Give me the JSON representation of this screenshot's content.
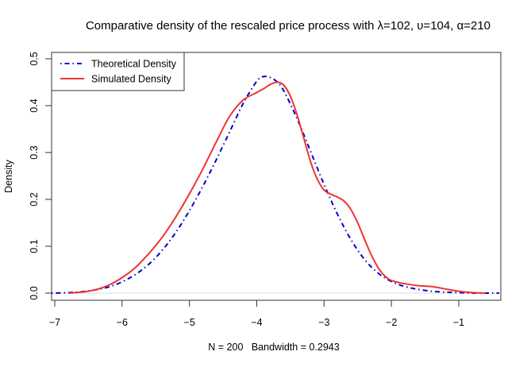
{
  "chart_data": {
    "type": "line",
    "title": "Comparative density of the rescaled price process with λ=102, υ=104, α=210",
    "xlabel": "N = 200   Bandwidth = 0.2943",
    "ylabel": "Density",
    "xlim": [
      -7.05,
      -0.4
    ],
    "ylim": [
      -0.015,
      0.525
    ],
    "x_ticks": [
      -7,
      -6,
      -5,
      -4,
      -3,
      -2,
      -1
    ],
    "x_tick_labels": [
      "−7",
      "−6",
      "−5",
      "−4",
      "−3",
      "−2",
      "−1"
    ],
    "y_ticks": [
      0.0,
      0.1,
      0.2,
      0.3,
      0.4,
      0.5
    ],
    "y_tick_labels": [
      "0.0",
      "0.1",
      "0.2",
      "0.3",
      "0.4",
      "0.5"
    ],
    "grid": false,
    "legend_position": "topleft",
    "reference_line_y": 0,
    "series": [
      {
        "name": "Theoretical Density",
        "color": "#0000CD",
        "style": "dashdot",
        "x": [
          -7.05,
          -6.8,
          -6.6,
          -6.4,
          -6.2,
          -6.0,
          -5.8,
          -5.6,
          -5.4,
          -5.2,
          -5.0,
          -4.8,
          -4.6,
          -4.4,
          -4.2,
          -4.0,
          -3.9,
          -3.8,
          -3.7,
          -3.6,
          -3.4,
          -3.2,
          -3.0,
          -2.8,
          -2.6,
          -2.4,
          -2.2,
          -2.0,
          -1.8,
          -1.6,
          -1.4,
          -1.2,
          -1.0,
          -0.8,
          -0.6,
          -0.4
        ],
        "y": [
          0.0,
          0.001,
          0.003,
          0.007,
          0.013,
          0.024,
          0.04,
          0.062,
          0.092,
          0.13,
          0.176,
          0.228,
          0.285,
          0.345,
          0.405,
          0.452,
          0.462,
          0.46,
          0.451,
          0.432,
          0.372,
          0.302,
          0.232,
          0.168,
          0.114,
          0.072,
          0.043,
          0.025,
          0.014,
          0.008,
          0.004,
          0.002,
          0.001,
          0.0,
          0.0,
          0.0
        ]
      },
      {
        "name": "Simulated Density",
        "color": "#EE3333",
        "style": "solid",
        "x": [
          -6.8,
          -6.6,
          -6.4,
          -6.2,
          -6.0,
          -5.8,
          -5.6,
          -5.4,
          -5.2,
          -5.0,
          -4.8,
          -4.6,
          -4.4,
          -4.2,
          -4.0,
          -3.9,
          -3.8,
          -3.7,
          -3.6,
          -3.5,
          -3.4,
          -3.3,
          -3.2,
          -3.1,
          -3.0,
          -2.9,
          -2.8,
          -2.7,
          -2.6,
          -2.5,
          -2.4,
          -2.3,
          -2.2,
          -2.1,
          -2.0,
          -1.8,
          -1.6,
          -1.4,
          -1.2,
          -1.0,
          -0.8,
          -0.6
        ],
        "y": [
          0.0,
          0.002,
          0.007,
          0.017,
          0.033,
          0.055,
          0.085,
          0.12,
          0.163,
          0.212,
          0.265,
          0.323,
          0.378,
          0.412,
          0.428,
          0.436,
          0.445,
          0.45,
          0.444,
          0.42,
          0.38,
          0.33,
          0.28,
          0.243,
          0.22,
          0.211,
          0.205,
          0.196,
          0.178,
          0.15,
          0.115,
          0.082,
          0.055,
          0.037,
          0.027,
          0.02,
          0.016,
          0.014,
          0.009,
          0.004,
          0.001,
          0.0
        ]
      }
    ]
  },
  "legend": {
    "items": [
      {
        "label": "Theoretical Density",
        "color": "#0000CD"
      },
      {
        "label": "Simulated Density",
        "color": "#EE3333"
      }
    ]
  }
}
